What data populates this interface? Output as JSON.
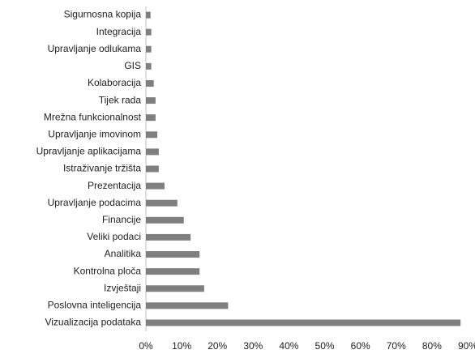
{
  "chart_data": {
    "type": "hbar",
    "categories": [
      "Sigurnosna kopija",
      "Integracija",
      "Upravljanje odlukama",
      "GIS",
      "Kolaboracija",
      "Tijek rada",
      "Mrežna funkcionalnost",
      "Upravljanje imovinom",
      "Upravljanje aplikacijama",
      "Istraživanje tržišta",
      "Prezentacija",
      "Upravljanje podacima",
      "Financije",
      "Veliki podaci",
      "Analitika",
      "Kontrolna ploča",
      "Izvještaji",
      "Poslovna inteligencija",
      "Vizualizacija podataka"
    ],
    "values": [
      1.3,
      1.5,
      1.5,
      1.5,
      2.2,
      2.7,
      2.7,
      3.2,
      3.6,
      3.6,
      5.2,
      8.8,
      10.6,
      12.5,
      15,
      15,
      16.3,
      23,
      88
    ],
    "color": "#7f7f7f",
    "xlim": [
      0,
      90
    ],
    "xticks": [
      {
        "value": 0,
        "label": "0%"
      },
      {
        "value": 10,
        "label": "10%"
      },
      {
        "value": 20,
        "label": "20%"
      },
      {
        "value": 30,
        "label": "30%"
      },
      {
        "value": 40,
        "label": "40%"
      },
      {
        "value": 50,
        "label": "50%"
      },
      {
        "value": 60,
        "label": "60%"
      },
      {
        "value": 70,
        "label": "70%"
      },
      {
        "value": 80,
        "label": "80%"
      },
      {
        "value": 90,
        "label": "90%"
      }
    ],
    "grid": false
  }
}
